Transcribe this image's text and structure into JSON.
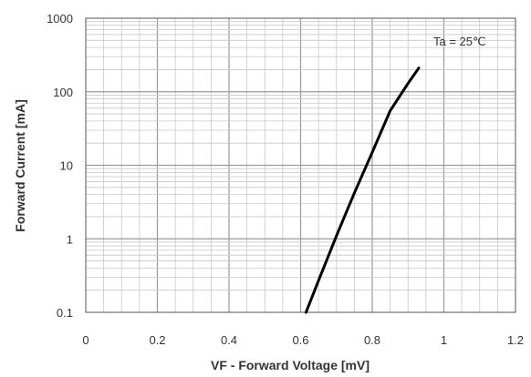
{
  "chart_data": {
    "type": "line",
    "xlabel": "VF - Forward Voltage [mV]",
    "ylabel": "Forward Current [mA]",
    "xlim": [
      0,
      1.2
    ],
    "ylim": [
      0.1,
      1000
    ],
    "yscale": "log",
    "xticks": [
      0,
      0.2,
      0.4,
      0.6,
      0.8,
      1,
      1.2
    ],
    "xtick_labels": [
      "0",
      "0.2",
      "0.4",
      "0.6",
      "0.8",
      "1",
      "1.2"
    ],
    "yticks": [
      0.1,
      1,
      10,
      100,
      1000
    ],
    "ytick_labels": [
      "0.1",
      "1",
      "10",
      "100",
      "1000"
    ],
    "grid": true,
    "annotation": "Ta = 25℃",
    "series": [
      {
        "x": [
          0.615,
          0.65,
          0.7,
          0.75,
          0.8,
          0.85,
          0.9,
          0.93
        ],
        "y": [
          0.1,
          0.27,
          1.1,
          4.2,
          15,
          55,
          130,
          210
        ],
        "color": "#000000"
      }
    ]
  }
}
